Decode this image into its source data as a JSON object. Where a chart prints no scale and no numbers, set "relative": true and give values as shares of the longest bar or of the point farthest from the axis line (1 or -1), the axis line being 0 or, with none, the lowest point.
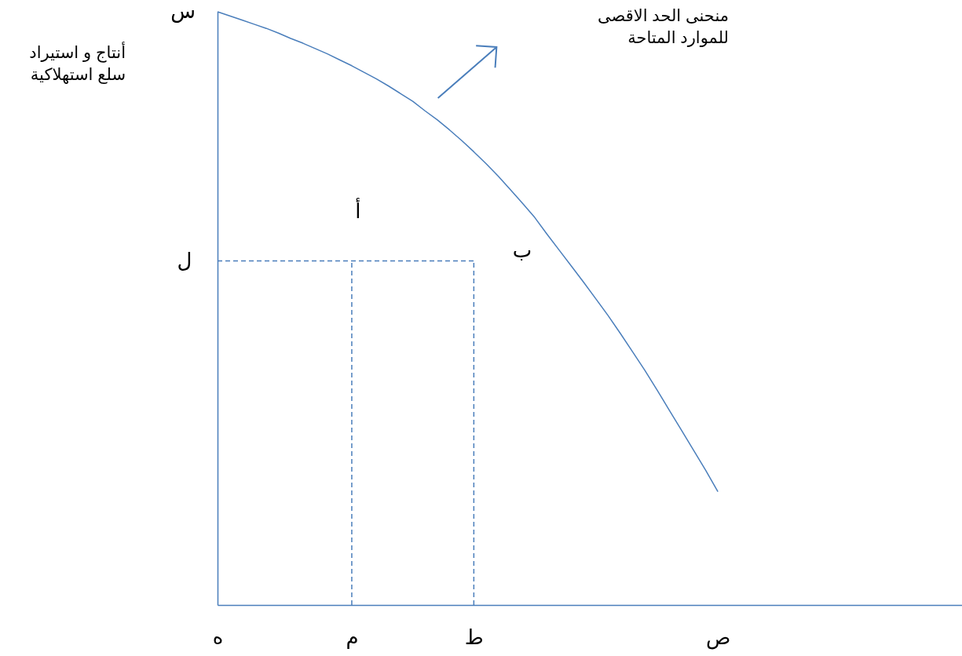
{
  "chart_data": {
    "type": "line",
    "relative": true,
    "categories": [
      "ه",
      null,
      null,
      null,
      null,
      null,
      null,
      null,
      null,
      null,
      null,
      "م",
      null,
      null,
      null,
      null,
      null,
      null,
      null,
      null,
      null,
      "ط",
      null,
      null,
      null,
      null,
      null,
      null,
      null,
      null,
      null,
      null,
      null,
      null,
      null,
      null,
      null,
      null,
      null,
      null,
      null,
      "ص",
      null,
      null,
      null,
      null,
      null,
      null,
      null,
      null,
      null,
      null,
      null,
      null,
      null,
      null,
      null,
      null,
      null,
      null,
      null,
      null
    ],
    "series": [
      {
        "color": "#4a7ebb",
        "line_style": "solid",
        "values": [
          1.0,
          0.993,
          0.986,
          0.979,
          0.972,
          0.964,
          0.955,
          0.947,
          0.938,
          0.929,
          0.919,
          0.909,
          0.898,
          0.887,
          0.875,
          0.862,
          0.849,
          0.833,
          0.818,
          0.801,
          0.783,
          0.764,
          0.744,
          0.723,
          0.7,
          0.677,
          0.653,
          0.625,
          0.598,
          0.571,
          0.544,
          0.516,
          0.488,
          0.458,
          0.427,
          0.396,
          0.363,
          0.329,
          0.295,
          0.261,
          0.227,
          0.191,
          null,
          null,
          null,
          null,
          null,
          null,
          null,
          null,
          null,
          null,
          null,
          null,
          null,
          null,
          null,
          null,
          null,
          null,
          null,
          null
        ]
      },
      {
        "color": "#4a7ebb",
        "line_style": "dashed",
        "values": [
          0.58,
          0.58,
          0.58,
          0.58,
          0.58,
          0.58,
          0.58,
          0.58,
          0.58,
          0.58,
          0.58,
          0.58,
          0.58,
          0.58,
          0.58,
          0.58,
          0.58,
          0.58,
          0.58,
          0.58,
          0.58,
          0.58,
          null,
          null,
          null,
          null,
          null,
          null,
          null,
          null,
          null,
          null,
          null,
          null,
          null,
          null,
          null,
          null,
          null,
          null,
          null,
          null,
          null,
          null,
          null,
          null,
          null,
          null,
          null,
          null,
          null,
          null,
          null,
          null,
          null,
          null,
          null,
          null,
          null,
          null,
          null,
          null
        ]
      }
    ],
    "ref_lines": [
      {
        "axis": "x",
        "value": "م",
        "color": "#4a7ebb",
        "line_style": "dashed"
      },
      {
        "axis": "x",
        "value": "ط",
        "color": "#4a7ebb",
        "line_style": "dashed"
      }
    ],
    "annotations": [
      {
        "text": "س",
        "x": "ه",
        "y": 1
      },
      {
        "text": "ل",
        "x": "ه",
        "y": 0.58
      },
      {
        "text": "أ",
        "x": "م",
        "y": 0.58
      },
      "ب",
      "منحنى الحد الاقصى\nللموارد المتاحة",
      "أنتاج و استيراد\nسلع استهلاكية"
    ]
  }
}
